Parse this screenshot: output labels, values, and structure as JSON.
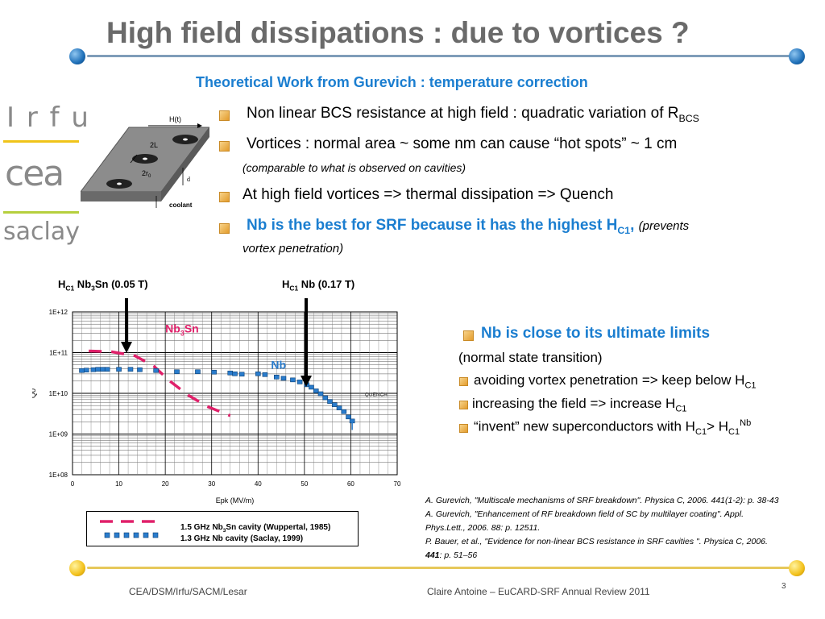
{
  "header": {
    "title": "High field dissipations : due to vortices ?",
    "subtitle": "Theoretical Work from Gurevich : temperature correction"
  },
  "logos": {
    "irfu": "I r f u",
    "cea": "cea",
    "saclay": "saclay"
  },
  "diagram": {
    "field": "H(t)",
    "spacing": "2L",
    "radius_prefix": "2r",
    "radius_sub": "0",
    "thickness": "d",
    "coolant": "coolant"
  },
  "bullets": {
    "b1_text": "Non linear BCS resistance at high field : quadratic variation of R",
    "b1_sub": "BCS",
    "b2_text": "Vortices : normal area ~ some nm can cause “hot spots” ~ 1 cm",
    "b2_note": "(comparable to what is observed on cavities)",
    "b3_text": "At high field vortices => thermal dissipation => Quench",
    "b4_text": "Nb is the best for SRF because it has the highest H",
    "b4_sub": "C1",
    "b4_comma": ",",
    "b4_note1": "(prevents",
    "b4_note2": "vortex penetration)"
  },
  "annotations": {
    "hc1_nb3sn_H": "H",
    "hc1_nb3sn_sub": "C1",
    "hc1_nb3sn_rest1": " Nb",
    "hc1_nb3sn_sub2": "3",
    "hc1_nb3sn_rest2": "Sn (0.05 T)",
    "hc1_nb_H": "H",
    "hc1_nb_sub": "C1",
    "hc1_nb_rest": " Nb (0.17 T)"
  },
  "chart_data": {
    "type": "scatter",
    "xlabel": "Epk (MV/m)",
    "ylabel": "Q0",
    "xlim": [
      0,
      70
    ],
    "ylim": [
      8,
      12
    ],
    "y_scale": "log",
    "x_ticks": [
      "0",
      "10",
      "20",
      "30",
      "40",
      "50",
      "60",
      "70"
    ],
    "y_ticks": [
      "1E+08",
      "1E+09",
      "1E+10",
      "1E+11",
      "1E+12"
    ],
    "grid": true,
    "annotations": [
      "Nb3Sn",
      "Nb",
      "QUENCH"
    ],
    "series": [
      {
        "name": "1.5 GHz Nb3Sn cavity (Wuppertal, 1985)",
        "marker": "dashed-line",
        "color": "#e0206a",
        "points": [
          [
            3.5,
            11.04
          ],
          [
            8.5,
            11.02
          ],
          [
            13.5,
            10.92
          ],
          [
            17.5,
            10.67
          ],
          [
            21,
            10.3
          ],
          [
            25,
            9.95
          ],
          [
            29,
            9.68
          ],
          [
            34,
            9.45
          ]
        ]
      },
      {
        "name": "1.3 GHz Nb cavity (Saclay, 1999)",
        "marker": "square",
        "color": "#2a7ccc",
        "points": [
          [
            2,
            10.56
          ],
          [
            3,
            10.57
          ],
          [
            4.5,
            10.58
          ],
          [
            5.5,
            10.59
          ],
          [
            6.5,
            10.59
          ],
          [
            7.5,
            10.59
          ],
          [
            10,
            10.59
          ],
          [
            12.5,
            10.59
          ],
          [
            14.5,
            10.58
          ],
          [
            18,
            10.56
          ],
          [
            22.5,
            10.53
          ],
          [
            27,
            10.53
          ],
          [
            30.5,
            10.52
          ],
          [
            34,
            10.5
          ],
          [
            35,
            10.48
          ],
          [
            36.5,
            10.47
          ],
          [
            40,
            10.48
          ],
          [
            41.5,
            10.46
          ],
          [
            44,
            10.4
          ],
          [
            45.5,
            10.37
          ],
          [
            47.5,
            10.33
          ],
          [
            49,
            10.28
          ],
          [
            50.5,
            10.21
          ],
          [
            51.5,
            10.15
          ],
          [
            52.5,
            10.06
          ],
          [
            53.5,
            9.99
          ],
          [
            54.5,
            9.89
          ],
          [
            55.5,
            9.8
          ],
          [
            56.5,
            9.72
          ],
          [
            57.5,
            9.64
          ],
          [
            58.5,
            9.55
          ],
          [
            59.5,
            9.42
          ],
          [
            60.3,
            9.32
          ]
        ]
      }
    ]
  },
  "legend": {
    "nb3sn_label_a": "1.5 GHz Nb",
    "nb3sn_label_sub": "3",
    "nb3sn_label_b": "Sn cavity (Wuppertal, 1985)",
    "nb_label": "1.3 GHz Nb cavity (Saclay, 1999)"
  },
  "right_panel": {
    "heading": "Nb is close to its ultimate limits",
    "line1": "(normal state transition)",
    "line2": "avoiding vortex penetration => keep below H",
    "line2_sub": "C1",
    "line3": "increasing the field => increase H",
    "line3_sub": "C1",
    "line4_a": "“invent” new superconductors with H",
    "line4_sub1": "C1",
    "line4_b": "> H",
    "line4_sub2": "C1",
    "line4_sup": "Nb"
  },
  "references": [
    "A. Gurevich, \"Multiscale mechanisms of SRF breakdown\". Physica C, 2006. 441(1-2): p. 38-43",
    "A. Gurevich, \"Enhancement of RF breakdown field of SC by multilayer coating\". Appl.",
    "Phys.Lett., 2006. 88: p. 12511.",
    "P. Bauer, et al., \"Evidence for non-linear BCS resistance in SRF cavities \". Physica C, 2006.",
    "441",
    ": p. 51–56"
  ],
  "footer": {
    "left": "CEA/DSM/Irfu/SACM/Lesar",
    "center": "Claire Antoine – EuCARD-SRF Annual Review 2011",
    "page": "3"
  }
}
